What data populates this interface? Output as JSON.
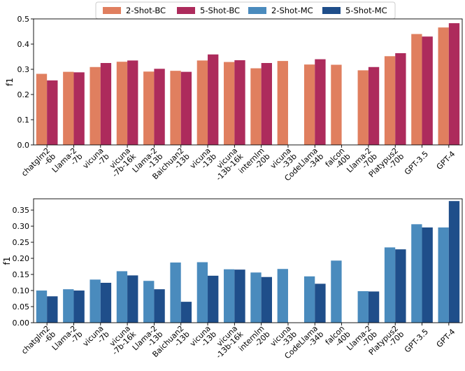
{
  "legend": {
    "entries": [
      {
        "name": "2-Shot-BC",
        "color": "#e07f5f"
      },
      {
        "name": "5-Shot-BC",
        "color": "#ad2b5c"
      },
      {
        "name": "2-Shot-MC",
        "color": "#4a8bbd"
      },
      {
        "name": "5-Shot-MC",
        "color": "#1f4e8a"
      }
    ]
  },
  "chart_data": [
    {
      "type": "bar",
      "title": "",
      "xlabel": "",
      "ylabel": "f1",
      "ylim": [
        0,
        0.5
      ],
      "yticks": [
        "0.0",
        "0.1",
        "0.2",
        "0.3",
        "0.4",
        "0.5"
      ],
      "ytick_values": [
        0,
        0.1,
        0.2,
        0.3,
        0.4,
        0.5
      ],
      "categories": [
        [
          "chatglm2",
          "-6b"
        ],
        [
          "Llama-2",
          "-7b"
        ],
        [
          "vicuna",
          "-7b"
        ],
        [
          "vicuna",
          "-7b-16k"
        ],
        [
          "Llama-2",
          "-13b"
        ],
        [
          "Baichuan2",
          "-13b"
        ],
        [
          "vicuna",
          "-13b"
        ],
        [
          "vicuna",
          "-13b-16k"
        ],
        [
          "internlm",
          "-20b"
        ],
        [
          "vicuna",
          "-33b"
        ],
        [
          "CodeLlama",
          "-34b"
        ],
        [
          "falcon",
          "-40b"
        ],
        [
          "Llama-2",
          "-70b"
        ],
        [
          "Platypus2",
          "-70b"
        ],
        [
          "GPT-3.5"
        ],
        [
          "GPT-4"
        ]
      ],
      "series": [
        {
          "name": "2-Shot-BC",
          "color": "#e07f5f",
          "values": [
            0.282,
            0.29,
            0.309,
            0.33,
            0.291,
            0.294,
            0.335,
            0.329,
            0.304,
            0.333,
            0.319,
            0.318,
            0.296,
            0.352,
            0.44,
            0.466
          ]
        },
        {
          "name": "5-Shot-BC",
          "color": "#ad2b5c",
          "values": [
            0.256,
            0.288,
            0.325,
            0.335,
            0.302,
            0.29,
            0.359,
            0.336,
            0.325,
            null,
            0.34,
            null,
            0.309,
            0.364,
            0.43,
            0.483
          ]
        }
      ]
    },
    {
      "type": "bar",
      "title": "",
      "xlabel": "",
      "ylabel": "f1",
      "ylim": [
        0,
        0.385
      ],
      "yticks": [
        "0.00",
        "0.05",
        "0.10",
        "0.15",
        "0.20",
        "0.25",
        "0.30",
        "0.35"
      ],
      "ytick_values": [
        0,
        0.05,
        0.1,
        0.15,
        0.2,
        0.25,
        0.3,
        0.35
      ],
      "categories": [
        [
          "chatglm2",
          "-6b"
        ],
        [
          "Llama-2",
          "-7b"
        ],
        [
          "vicuna",
          "-7b"
        ],
        [
          "vicuna",
          "-7b-16k"
        ],
        [
          "Llama-2",
          "-13b"
        ],
        [
          "Baichuan2",
          "-13b"
        ],
        [
          "vicuna",
          "-13b"
        ],
        [
          "vicuna",
          "-13b-16k"
        ],
        [
          "internlm",
          "-20b"
        ],
        [
          "vicuna",
          "-33b"
        ],
        [
          "CodeLlama",
          "-34b"
        ],
        [
          "falcon",
          "-40b"
        ],
        [
          "Llama-2",
          "-70b"
        ],
        [
          "Platypus2",
          "-70b"
        ],
        [
          "GPT-3.5"
        ],
        [
          "GPT-4"
        ]
      ],
      "series": [
        {
          "name": "2-Shot-MC",
          "color": "#4a8bbd",
          "values": [
            0.1,
            0.104,
            0.134,
            0.16,
            0.13,
            0.187,
            0.188,
            0.166,
            0.156,
            0.167,
            0.144,
            0.193,
            0.098,
            0.234,
            0.306,
            0.296
          ]
        },
        {
          "name": "5-Shot-MC",
          "color": "#1f4e8a",
          "values": [
            0.082,
            0.1,
            0.124,
            0.147,
            0.104,
            0.065,
            0.146,
            0.165,
            0.142,
            null,
            0.121,
            null,
            0.097,
            0.228,
            0.296,
            0.378
          ]
        }
      ]
    }
  ]
}
